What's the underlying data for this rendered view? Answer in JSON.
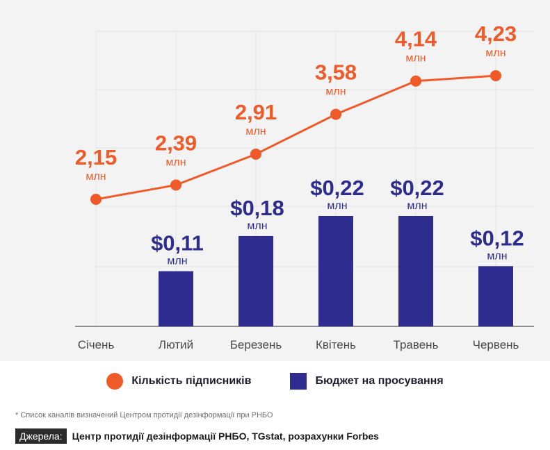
{
  "chart_data": {
    "type": "bar",
    "categories": [
      "Січень",
      "Лютий",
      "Березень",
      "Квітень",
      "Травень",
      "Червень"
    ],
    "series": [
      {
        "name": "Кількість підписників",
        "type": "line",
        "values": [
          2.15,
          2.39,
          2.91,
          3.58,
          4.14,
          4.23
        ],
        "labels": [
          "2,15",
          "2,39",
          "2,91",
          "3,58",
          "4,14",
          "4,23"
        ],
        "unit": "млн",
        "color": "#f05a28"
      },
      {
        "name": "Бюджет на просування",
        "type": "bar",
        "values": [
          null,
          0.11,
          0.18,
          0.22,
          0.22,
          0.12
        ],
        "labels": [
          "",
          "$0,11",
          "$0,18",
          "$0,22",
          "$0,22",
          "$0,12"
        ],
        "unit": "млн",
        "color": "#2e2c8f"
      }
    ],
    "grid": true,
    "legend": "bottom"
  },
  "legend": {
    "subscribers": "Кількість підписників",
    "budget": "Бюджет на просування"
  },
  "footnote": "* Список каналів визначений Центром протидії дезінформації при РНБО",
  "sources": {
    "badge": "Джерела:",
    "text": "Центр протидії дезінформації РНБО, TGstat, розрахунки Forbes"
  }
}
